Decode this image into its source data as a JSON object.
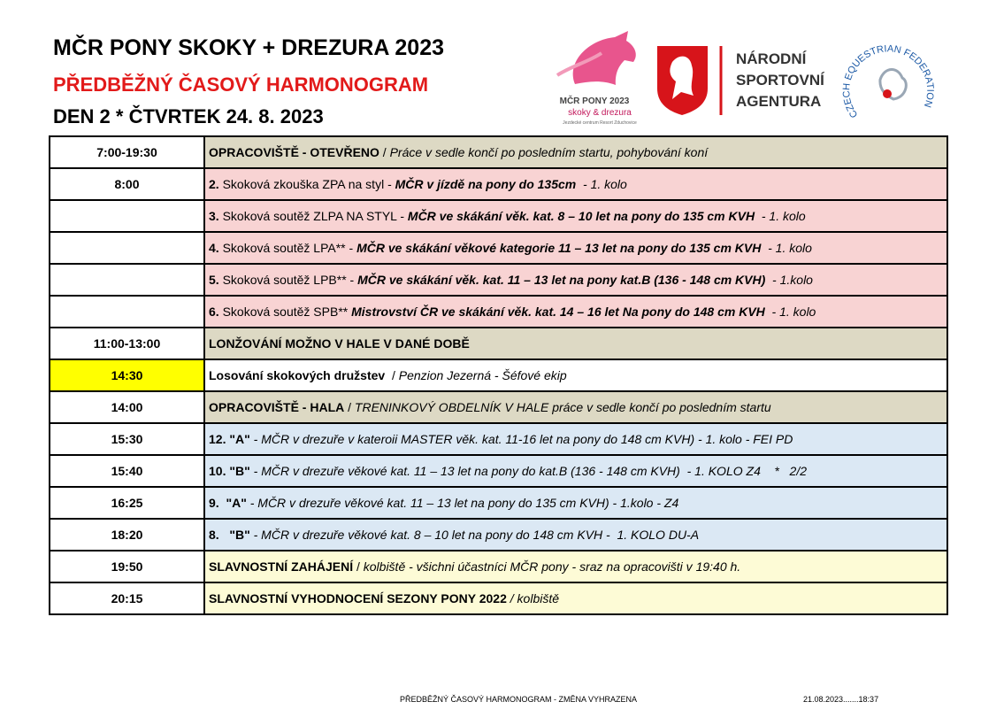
{
  "header": {
    "title": "MČR PONY SKOKY + DREZURA 2023",
    "subtitle": "PŘEDBĚŽNÝ ČASOVÝ HARMONOGRAM",
    "day": "DEN 2  *  ČTVRTEK 24. 8. 2023"
  },
  "logos": {
    "event_name": "MČR PONY 2023",
    "event_tagline": "skoky & drezura",
    "event_venue": "Jezdecké centrum Resort Zduchovice",
    "agency": [
      "NÁRODNÍ",
      "SPORTOVNÍ",
      "AGENTURA"
    ],
    "federation": "CZECH EQUESTRIAN FEDERATION"
  },
  "table": {
    "rows": [
      {
        "time": "7:00-19:30",
        "color": "#ddd9c4",
        "description": [
          {
            "text": "OPRACOVIŠTĚ - OTEVŘENO",
            "bold": true
          },
          {
            "text": " / "
          },
          {
            "text": "Práce v sedle končí po posledním startu, pohybování koní",
            "italic": true
          }
        ]
      },
      {
        "time": "8:00",
        "color": "#f8d3d3",
        "description": [
          {
            "text": "2.",
            "bold": true
          },
          {
            "text": " Skoková zkouška ZPA na styl - "
          },
          {
            "text": "MČR v jízdě na pony do 135cm ",
            "bold": true,
            "italic": true
          },
          {
            "text": " - 1. kolo",
            "italic": true
          }
        ]
      },
      {
        "time": null,
        "color": "#f8d3d3",
        "description": [
          {
            "text": "3.",
            "bold": true
          },
          {
            "text": " Skoková soutěž ZLPA NA STYL - "
          },
          {
            "text": "MČR ve skákání věk. kat. 8 – 10 let na pony do 135 cm KVH",
            "bold": true,
            "italic": true
          },
          {
            "text": "  - 1. kolo",
            "italic": true
          }
        ]
      },
      {
        "time": null,
        "color": "#f8d3d3",
        "description": [
          {
            "text": "4.",
            "bold": true
          },
          {
            "text": " Skoková soutěž LPA** - "
          },
          {
            "text": "MČR ve skákání věkové kategorie 11 – 13 let na pony do 135 cm KVH ",
            "bold": true,
            "italic": true
          },
          {
            "text": " - 1. kolo",
            "italic": true
          }
        ]
      },
      {
        "time": null,
        "color": "#f8d3d3",
        "description": [
          {
            "text": "5.",
            "bold": true
          },
          {
            "text": " Skoková soutěž LPB** - "
          },
          {
            "text": "MČR ve skákání věk. kat. 11 – 13 let na pony kat.B (136 - 148 cm KVH) ",
            "bold": true,
            "italic": true
          },
          {
            "text": " - 1.kolo",
            "italic": true
          }
        ]
      },
      {
        "time": null,
        "color": "#f8d3d3",
        "description": [
          {
            "text": "6.",
            "bold": true
          },
          {
            "text": " Skoková soutěž SPB** "
          },
          {
            "text": "Mistrovství ČR ve skákání věk. kat. 14 – 16 let Na pony do 148 cm KVH ",
            "bold": true,
            "italic": true
          },
          {
            "text": " - 1. kolo",
            "italic": true
          }
        ]
      },
      {
        "time": "11:00-13:00",
        "color": "#ddd9c4",
        "description": [
          {
            "text": "LONŽOVÁNÍ MOŽNO V HALE V DANÉ DOBĚ",
            "bold": true
          }
        ]
      },
      {
        "time": "14:30",
        "color": "#ffffff",
        "time_color": "#ffff00",
        "description": [
          {
            "text": "Losování skokových družstev ",
            "bold": true
          },
          {
            "text": " / "
          },
          {
            "text": "Penzion Jezerná - Šéfové ekip",
            "italic": true
          }
        ]
      },
      {
        "time": "14:00",
        "color": "#ddd9c4",
        "description": [
          {
            "text": "OPRACOVIŠTĚ - HALA",
            "bold": true
          },
          {
            "text": " / "
          },
          {
            "text": "TRENINKOVÝ OBDELNÍK V HALE práce v sedle končí po posledním startu",
            "italic": true
          }
        ]
      },
      {
        "time": "15:30",
        "color": "#dbe8f4",
        "description": [
          {
            "text": "12. \"A\"",
            "bold": true
          },
          {
            "text": " - MČR v drezuře v kateroii MASTER věk. kat. 11-16 let na pony do 148 cm KVH) - 1. kolo - FEI PD",
            "italic": true
          }
        ]
      },
      {
        "time": "15:40",
        "color": "#dbe8f4",
        "description": [
          {
            "text": "10. \"B\"",
            "bold": true
          },
          {
            "text": " - MČR v drezuře věkové kat. 11 – 13 let na pony do kat.B (136 - 148 cm KVH)  - 1. KOLO Z4    *   2/2",
            "italic": true
          }
        ]
      },
      {
        "time": "16:25",
        "color": "#dbe8f4",
        "description": [
          {
            "text": "9.  \"A\"",
            "bold": true
          },
          {
            "text": " - MČR v drezuře věkové kat. 11 – 13 let na pony do 135 cm KVH) - 1.kolo - Z4",
            "italic": true
          }
        ]
      },
      {
        "time": "18:20",
        "color": "#dbe8f4",
        "description": [
          {
            "text": "8.   \"B\"",
            "bold": true
          },
          {
            "text": " - MČR v drezuře věkové kat. 8 – 10 let na pony do 148 cm KVH -  1. KOLO DU-A",
            "italic": true
          }
        ]
      },
      {
        "time": "19:50",
        "color": "#fdfbd6",
        "description": [
          {
            "text": "SLAVNOSTNÍ ZAHÁJENÍ",
            "bold": true
          },
          {
            "text": " / "
          },
          {
            "text": "kolbiště - všichni účastníci MČR pony - sraz na opracovišti v 19:40 h.",
            "italic": true
          }
        ]
      },
      {
        "time": "20:15",
        "color": "#fdfbd6",
        "description": [
          {
            "text": "SLAVNOSTNÍ VYHODNOCENÍ SEZONY PONY 2022",
            "bold": true
          },
          {
            "text": " / kolbiště",
            "italic": true
          }
        ]
      }
    ]
  },
  "footer": {
    "note": "PŘEDBĚŽNÝ ČASOVÝ HARMONOGRAM - ZMĚNA VYHRAZENA",
    "timestamp": "21.08.2023.......18:37"
  }
}
